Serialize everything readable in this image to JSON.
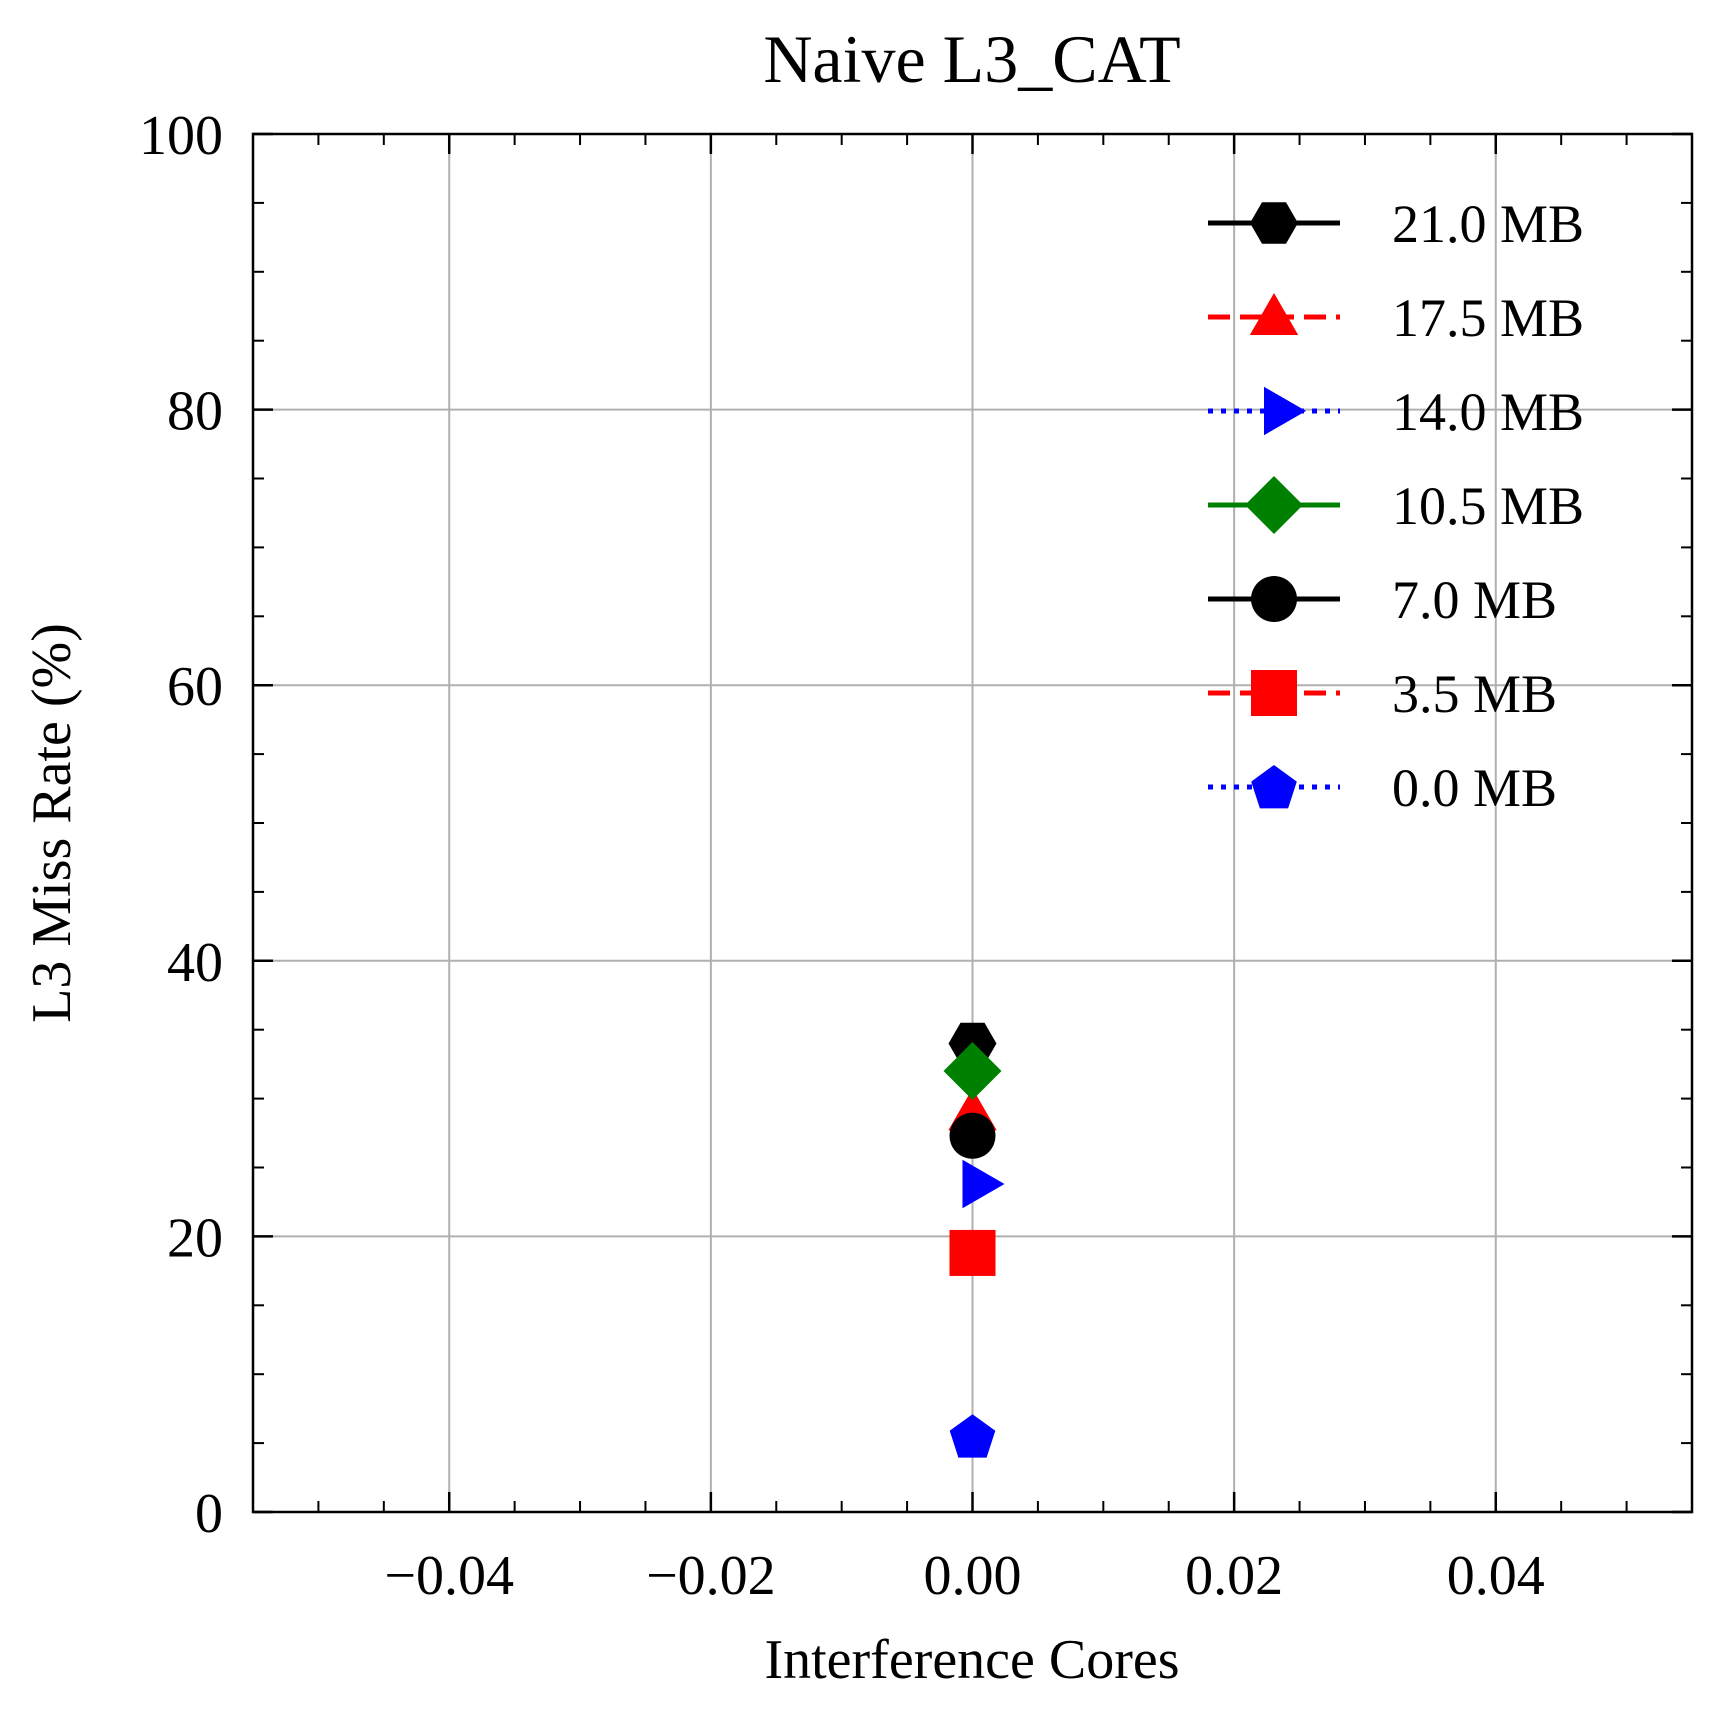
{
  "chart_data": {
    "type": "scatter",
    "title": "Naive L3_CAT",
    "xlabel": "Interference Cores",
    "ylabel": "L3 Miss Rate (%)",
    "xlim": [
      -0.055,
      0.055
    ],
    "ylim": [
      0,
      100
    ],
    "x_ticks": [
      -0.04,
      -0.02,
      0.0,
      0.02,
      0.04
    ],
    "x_tick_labels": [
      "−0.04",
      "−0.02",
      "0.00",
      "0.02",
      "0.04"
    ],
    "y_ticks": [
      0,
      20,
      40,
      60,
      80,
      100
    ],
    "y_tick_labels": [
      "0",
      "20",
      "40",
      "60",
      "80",
      "100"
    ],
    "grid": true,
    "legend_position": "top-right",
    "series": [
      {
        "name": "21.0 MB",
        "color": "#000000",
        "line_style": "solid",
        "marker": "hexagon",
        "x": [
          0.0
        ],
        "y": [
          34.0
        ]
      },
      {
        "name": "17.5 MB",
        "color": "#ff0000",
        "line_style": "dashed",
        "marker": "triangle-up",
        "x": [
          0.0
        ],
        "y": [
          29.0
        ]
      },
      {
        "name": "14.0 MB",
        "color": "#0000ff",
        "line_style": "dotted",
        "marker": "triangle-right",
        "x": [
          0.0
        ],
        "y": [
          23.8
        ]
      },
      {
        "name": "10.5 MB",
        "color": "#008000",
        "line_style": "solid",
        "marker": "diamond",
        "x": [
          0.0
        ],
        "y": [
          32.0
        ]
      },
      {
        "name": "7.0 MB",
        "color": "#000000",
        "line_style": "solid",
        "marker": "circle",
        "x": [
          0.0
        ],
        "y": [
          27.3
        ]
      },
      {
        "name": "3.5 MB",
        "color": "#ff0000",
        "line_style": "dashed",
        "marker": "square",
        "x": [
          0.0
        ],
        "y": [
          18.8
        ]
      },
      {
        "name": "0.0 MB",
        "color": "#0000ff",
        "line_style": "dotted",
        "marker": "pentagon",
        "x": [
          0.0
        ],
        "y": [
          5.5
        ]
      }
    ]
  }
}
